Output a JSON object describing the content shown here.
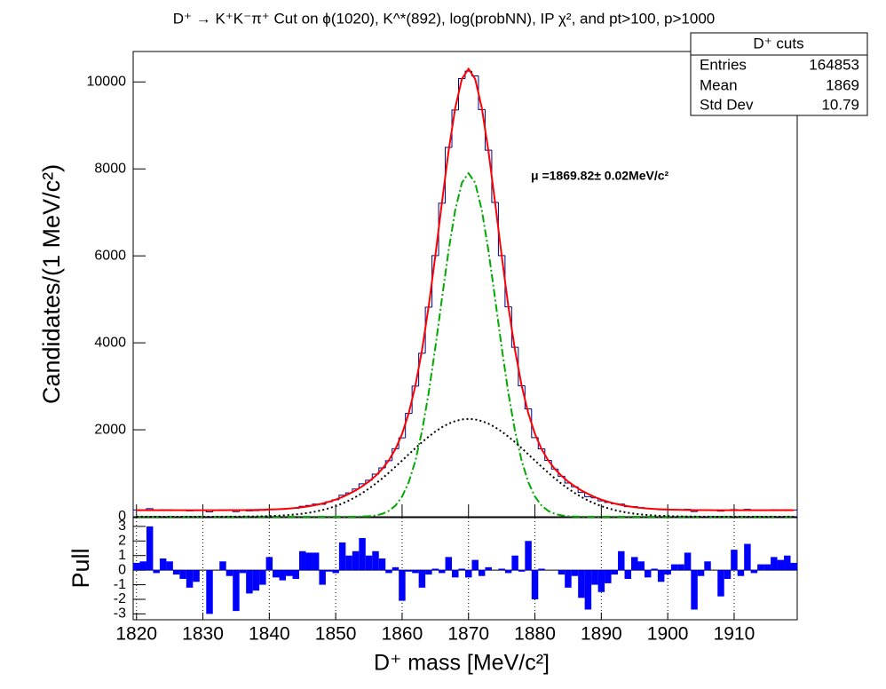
{
  "chart_data": {
    "type": "histogram",
    "title": "D⁺ → K⁺K⁻π⁺ Cut on ϕ(1020), K^*(892), log(probNN), IP χ², and pt>100, p>1000",
    "xlabel": "D⁺ mass [MeV/c²]",
    "ylabel": "Candidates/(1 MeV/c²)",
    "annotation": "μ =1869.82± 0.02MeV/c²",
    "xlim": [
      1819.5,
      1919.5
    ],
    "xticks": [
      1820,
      1830,
      1840,
      1850,
      1860,
      1870,
      1880,
      1890,
      1900,
      1910
    ],
    "ylim": [
      0,
      10700
    ],
    "yticks": [
      0,
      2000,
      4000,
      6000,
      8000,
      10000
    ],
    "color": "#000080",
    "x": [
      1820,
      1821,
      1822,
      1823,
      1824,
      1825,
      1826,
      1827,
      1828,
      1829,
      1830,
      1831,
      1832,
      1833,
      1834,
      1835,
      1836,
      1837,
      1838,
      1839,
      1840,
      1841,
      1842,
      1843,
      1844,
      1845,
      1846,
      1847,
      1848,
      1849,
      1850,
      1851,
      1852,
      1853,
      1854,
      1855,
      1856,
      1857,
      1858,
      1859,
      1860,
      1861,
      1862,
      1863,
      1864,
      1865,
      1866,
      1867,
      1868,
      1869,
      1870,
      1871,
      1872,
      1873,
      1874,
      1875,
      1876,
      1877,
      1878,
      1879,
      1880,
      1881,
      1882,
      1883,
      1884,
      1885,
      1886,
      1887,
      1888,
      1889,
      1890,
      1891,
      1892,
      1893,
      1894,
      1895,
      1896,
      1897,
      1898,
      1899,
      1900,
      1901,
      1902,
      1903,
      1904,
      1905,
      1906,
      1907,
      1908,
      1909,
      1910,
      1911,
      1912,
      1913,
      1914,
      1915,
      1916,
      1917,
      1918,
      1919
    ],
    "values": [
      156,
      157,
      187,
      148,
      160,
      157,
      146,
      143,
      135,
      140,
      150,
      113,
      151,
      158,
      147,
      118,
      152,
      135,
      140,
      148,
      177,
      164,
      170,
      184,
      194,
      239,
      261,
      290,
      287,
      344,
      391,
      494,
      548,
      638,
      759,
      839,
      980,
      1124,
      1290,
      1565,
      1815,
      2377,
      3005,
      3761,
      4819,
      6006,
      7212,
      8495,
      9356,
      10078,
      10249,
      10138,
      9365,
      8430,
      7229,
      6006,
      4826,
      3897,
      3011,
      2480,
      1820,
      1561,
      1297,
      1098,
      931,
      776,
      690,
      559,
      463,
      433,
      365,
      329,
      299,
      291,
      233,
      233,
      212,
      183,
      180,
      161,
      161,
      166,
      163,
      170,
      120,
      148,
      159,
      151,
      129,
      143,
      167,
      145,
      172,
      148,
      155,
      155,
      161,
      159,
      162,
      156
    ],
    "curves": [
      {
        "color": "#ff0000",
        "style": "solid",
        "values": [
          150,
          150,
          150,
          150,
          150,
          150,
          150,
          150,
          150,
          150,
          150,
          150,
          151,
          151,
          152,
          153,
          154,
          155,
          158,
          161,
          165,
          171,
          179,
          190,
          203,
          220,
          242,
          270,
          304,
          346,
          395,
          454,
          525,
          606,
          701,
          810,
          940,
          1098,
          1297,
          1557,
          1907,
          2382,
          3016,
          3835,
          4840,
          5998,
          7229,
          8412,
          9404,
          10068,
          10300,
          10068,
          9404,
          8412,
          7229,
          5998,
          4840,
          3835,
          3016,
          2382,
          1907,
          1557,
          1297,
          1098,
          940,
          810,
          701,
          606,
          525,
          454,
          395,
          346,
          304,
          270,
          242,
          220,
          203,
          190,
          179,
          171,
          165,
          161,
          158,
          155,
          154,
          153,
          152,
          151,
          151,
          150,
          150,
          150,
          150,
          150,
          150,
          150,
          150,
          150,
          150,
          150
        ]
      },
      {
        "color": "#00aa00",
        "style": "dashdot",
        "values": [
          0,
          0,
          0,
          0,
          0,
          0,
          0,
          0,
          0,
          0,
          0,
          0,
          0,
          0,
          0,
          0,
          0,
          0,
          0,
          0,
          0,
          0,
          0,
          0,
          0,
          0,
          0,
          0,
          0,
          0,
          0,
          0,
          1,
          2,
          6,
          13,
          30,
          66,
          134,
          256,
          464,
          796,
          1288,
          1970,
          2847,
          3889,
          5020,
          6121,
          7053,
          7680,
          7900,
          7680,
          7053,
          6121,
          5020,
          3889,
          2847,
          1970,
          1288,
          796,
          464,
          256,
          134,
          66,
          30,
          13,
          6,
          2,
          1,
          0,
          0,
          0,
          0,
          0,
          0,
          0,
          0,
          0,
          0,
          0,
          0,
          0,
          0,
          0,
          0,
          0,
          0,
          0,
          0,
          0,
          0,
          0,
          0,
          0,
          0,
          0,
          0,
          0,
          0,
          0
        ]
      },
      {
        "color": "#000000",
        "style": "dotted",
        "values": [
          0,
          0,
          0,
          0,
          0,
          0,
          0,
          0,
          0,
          0,
          0,
          0,
          1,
          1,
          2,
          3,
          4,
          5,
          8,
          11,
          15,
          21,
          29,
          40,
          53,
          70,
          92,
          120,
          154,
          196,
          245,
          304,
          374,
          454,
          545,
          647,
          760,
          882,
          1013,
          1151,
          1293,
          1436,
          1578,
          1715,
          1843,
          1959,
          2059,
          2141,
          2201,
          2238,
          2250,
          2238,
          2201,
          2141,
          2059,
          1959,
          1843,
          1715,
          1578,
          1436,
          1293,
          1151,
          1013,
          882,
          760,
          647,
          545,
          454,
          374,
          304,
          245,
          196,
          154,
          120,
          92,
          70,
          53,
          40,
          29,
          21,
          15,
          11,
          8,
          5,
          4,
          3,
          2,
          1,
          1,
          0,
          0,
          0,
          0,
          0,
          0,
          0,
          0,
          0,
          0,
          0
        ]
      }
    ],
    "stats": {
      "title": "D⁺ cuts",
      "rows": [
        {
          "label": "Entries",
          "value": 164853
        },
        {
          "label": "Mean",
          "value": 1869
        },
        {
          "label": "Std Dev",
          "value": 10.79
        }
      ]
    },
    "pull": {
      "ylabel": "Pull",
      "color": "#0000ff",
      "ylim": [
        -3.4,
        3.6
      ],
      "yticks": [
        -3,
        -2,
        -1,
        0,
        1,
        2,
        3
      ],
      "grid": true,
      "values": [
        0.5,
        0.6,
        3.0,
        -0.2,
        0.8,
        0.6,
        -0.3,
        -0.6,
        -1.2,
        -0.8,
        0.0,
        -3.0,
        0.0,
        0.6,
        -0.4,
        -2.8,
        -0.2,
        -1.6,
        -1.4,
        -1.0,
        0.9,
        -0.5,
        -0.7,
        -0.4,
        -0.6,
        1.3,
        1.2,
        1.2,
        -1.0,
        -0.1,
        -0.2,
        1.9,
        1.0,
        1.3,
        2.2,
        1.0,
        1.3,
        0.8,
        -0.2,
        0.2,
        -2.1,
        -0.1,
        -0.2,
        -1.2,
        -0.3,
        0.1,
        -0.2,
        0.9,
        -0.5,
        0.1,
        -0.5,
        0.7,
        -0.4,
        0.2,
        0.0,
        0.1,
        -0.2,
        1.0,
        -0.1,
        2.0,
        -2.0,
        0.1,
        0.0,
        0.0,
        -0.3,
        -1.2,
        -0.4,
        -1.9,
        -2.7,
        -1.0,
        -1.5,
        -0.9,
        -0.3,
        1.3,
        -0.6,
        0.9,
        0.6,
        -0.5,
        0.1,
        -0.8,
        -0.3,
        0.4,
        0.4,
        1.2,
        -2.7,
        -0.4,
        0.6,
        0.0,
        -1.8,
        -0.6,
        1.4,
        -0.4,
        1.8,
        -0.2,
        0.4,
        0.4,
        0.9,
        0.7,
        1.0,
        0.5
      ]
    }
  }
}
